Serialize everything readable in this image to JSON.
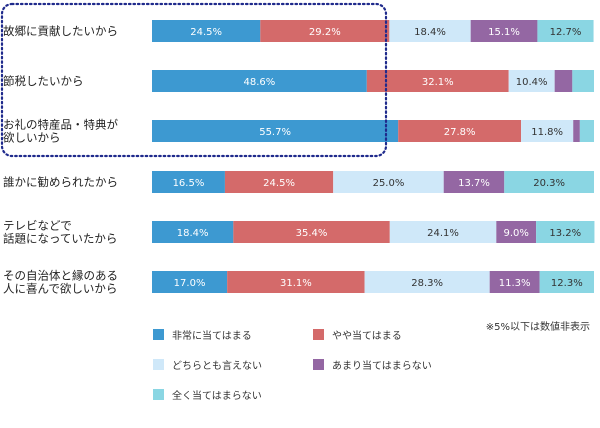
{
  "chart_data": {
    "type": "bar",
    "orientation": "horizontal",
    "stacked": true,
    "xlim": [
      0,
      100
    ],
    "categories": [
      [
        "故郷に貢献したいから"
      ],
      [
        "節税したいから"
      ],
      [
        "お礼の特産品・特典が",
        "欲しいから"
      ],
      [
        "誰かに勧められたから"
      ],
      [
        "テレビなどで",
        "話題になっていたから"
      ],
      [
        "その自治体と縁のある",
        "人に喜んで欲しいから"
      ]
    ],
    "series": [
      {
        "name": "非常に当てはまる",
        "color": "#3d99d1",
        "values": [
          24.5,
          48.6,
          55.7,
          16.5,
          18.4,
          17.0
        ]
      },
      {
        "name": "やや当てはまる",
        "color": "#d46a6a",
        "values": [
          29.2,
          32.1,
          27.8,
          24.5,
          35.4,
          31.1
        ]
      },
      {
        "name": "どちらとも言えない",
        "color": "#cfe8f9",
        "values": [
          18.4,
          10.4,
          11.8,
          25.0,
          24.1,
          28.3
        ]
      },
      {
        "name": "あまり当てはまらない",
        "color": "#9467a3",
        "values": [
          15.1,
          4.0,
          1.5,
          13.7,
          9.0,
          11.3
        ]
      },
      {
        "name": "全く当てはまらない",
        "color": "#8ad6e3",
        "values": [
          12.7,
          4.9,
          3.2,
          20.3,
          13.2,
          12.3
        ]
      }
    ],
    "label_threshold": 5,
    "highlight_rows": [
      0,
      1,
      2
    ],
    "grid": false,
    "legend_position": "bottom"
  },
  "note": "※5%以下は数値非表示"
}
